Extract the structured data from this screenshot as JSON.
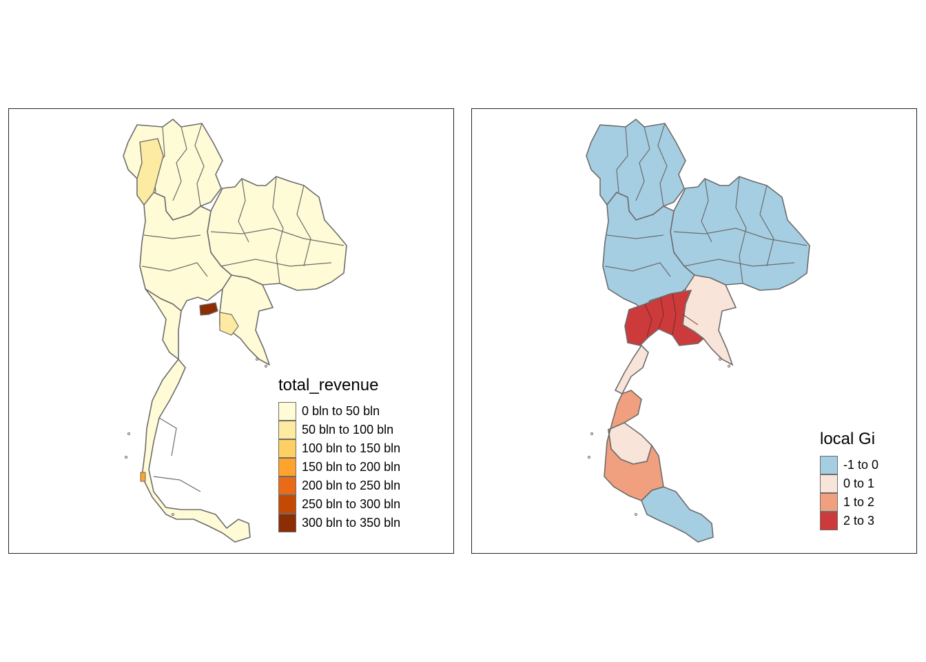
{
  "maps": [
    {
      "legend_title": "total_revenue",
      "classes": [
        {
          "label": "0 bln to 50 bln",
          "color": "#fffbd6"
        },
        {
          "label": "50 bln to 100 bln",
          "color": "#feeba2"
        },
        {
          "label": "100 bln to 150 bln",
          "color": "#fed063"
        },
        {
          "label": "150 bln to 200 bln",
          "color": "#fea32e"
        },
        {
          "label": "200 bln to 250 bln",
          "color": "#ea6b17"
        },
        {
          "label": "250 bln to 300 bln",
          "color": "#c44a04"
        },
        {
          "label": "300 bln to 350 bln",
          "color": "#8c2d04"
        }
      ]
    },
    {
      "legend_title": "local Gi",
      "classes": [
        {
          "label": "-1 to 0",
          "color": "#a6cee3"
        },
        {
          "label": "0 to 1",
          "color": "#f9e4d9"
        },
        {
          "label": "1 to 2",
          "color": "#f0a07e"
        },
        {
          "label": "2 to 3",
          "color": "#cc3a3b"
        }
      ]
    }
  ],
  "border_color": "#6b6b6b"
}
